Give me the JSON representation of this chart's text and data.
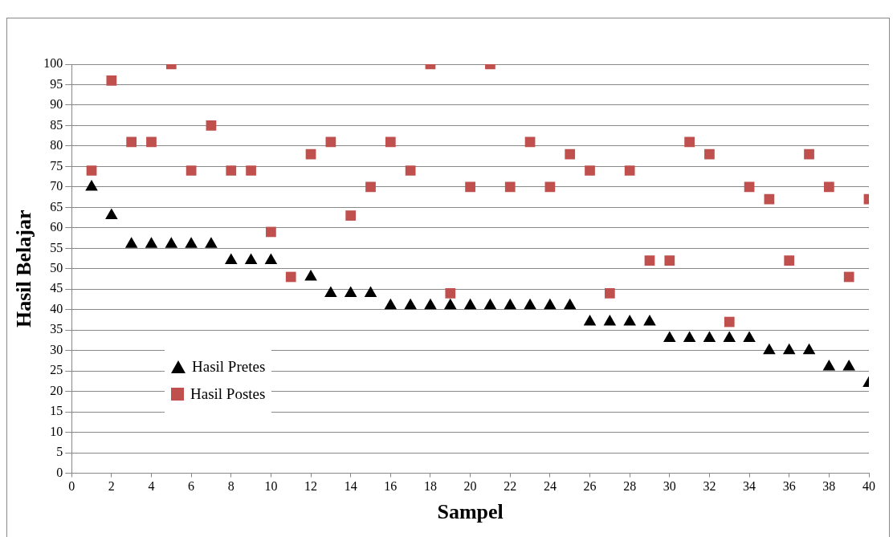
{
  "chart_data": {
    "type": "scatter",
    "xlabel": "Sampel",
    "ylabel": "Hasil Belajar",
    "x": [
      1,
      2,
      3,
      4,
      5,
      6,
      7,
      8,
      9,
      10,
      11,
      12,
      13,
      14,
      15,
      16,
      17,
      18,
      19,
      20,
      21,
      22,
      23,
      24,
      25,
      26,
      27,
      28,
      29,
      30,
      31,
      32,
      33,
      34,
      35,
      36,
      37,
      38,
      39,
      40
    ],
    "series": [
      {
        "name": "Hasil Pretes",
        "color": "#000000",
        "marker": "triangle",
        "values": [
          70,
          63,
          56,
          56,
          56,
          56,
          56,
          52,
          52,
          52,
          null,
          48,
          44,
          44,
          44,
          41,
          41,
          41,
          41,
          41,
          41,
          41,
          41,
          41,
          41,
          37,
          37,
          37,
          37,
          33,
          33,
          33,
          33,
          33,
          30,
          30,
          30,
          26,
          26,
          22
        ]
      },
      {
        "name": "Hasil Postes",
        "color": "#c0504d",
        "marker": "square",
        "values": [
          74,
          96,
          81,
          81,
          100,
          74,
          85,
          74,
          74,
          59,
          48,
          78,
          81,
          63,
          70,
          81,
          74,
          100,
          44,
          70,
          100,
          70,
          81,
          70,
          78,
          74,
          44,
          74,
          52,
          52,
          81,
          78,
          37,
          70,
          67,
          52,
          78,
          70,
          48,
          67
        ]
      }
    ],
    "xlim": [
      0,
      40
    ],
    "xticks": [
      0,
      2,
      4,
      6,
      8,
      10,
      12,
      14,
      16,
      18,
      20,
      22,
      24,
      26,
      28,
      30,
      32,
      34,
      36,
      38,
      40
    ],
    "ylim": [
      0,
      100
    ],
    "yticks": [
      0,
      5,
      10,
      15,
      20,
      25,
      30,
      35,
      40,
      45,
      50,
      55,
      60,
      65,
      70,
      75,
      80,
      85,
      90,
      95,
      100
    ],
    "grid": "y",
    "legend": "bottom left"
  }
}
